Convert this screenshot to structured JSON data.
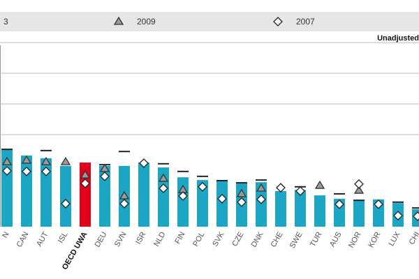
{
  "chart_data": {
    "type": "bar",
    "subtitle": "Unadjusted",
    "categories": [
      "N",
      "CAN",
      "AUT",
      "ISL",
      "OECD UWA",
      "DEU",
      "SVN",
      "ISR",
      "NLD",
      "FIN",
      "POL",
      "SVK",
      "CZE",
      "DNK",
      "CHE",
      "SWE",
      "TUR",
      "AUS",
      "NOR",
      "KOR",
      "LUX",
      "CHI"
    ],
    "values": [
      25.0,
      23.2,
      22.3,
      19.8,
      20.9,
      19.8,
      19.8,
      20.9,
      19.3,
      16.1,
      15.2,
      14.8,
      14.1,
      14.5,
      11.6,
      12.0,
      10.2,
      9.1,
      8.6,
      8.9,
      7.7,
      5.7
    ],
    "colors": [
      "#1aa6c4",
      "#1aa6c4",
      "#1aa6c4",
      "#1aa6c4",
      "#e3001b",
      "#1aa6c4",
      "#1aa6c4",
      "#1aa6c4",
      "#1aa6c4",
      "#1aa6c4",
      "#1aa6c4",
      "#1aa6c4",
      "#1aa6c4",
      "#1aa6c4",
      "#1aa6c4",
      "#1aa6c4",
      "#1aa6c4",
      "#1aa6c4",
      "#1aa6c4",
      "#1aa6c4",
      "#1aa6c4",
      "#1aa6c4"
    ],
    "series": [
      {
        "name": "3",
        "marker": "dash",
        "color": "#222222",
        "values": [
          25.2,
          null,
          24.8,
          null,
          null,
          20.2,
          24.5,
          null,
          20.5,
          18.0,
          16.4,
          15.0,
          14.3,
          15.2,
          null,
          13.0,
          null,
          10.7,
          8.6,
          null,
          8.0,
          6.1
        ]
      },
      {
        "name": "2009",
        "marker": "triangle",
        "color": "#9a9a9a",
        "values": [
          21.1,
          21.6,
          21.1,
          21.1,
          16.8,
          18.9,
          10.0,
          null,
          15.7,
          12.0,
          null,
          null,
          10.7,
          12.5,
          null,
          null,
          13.4,
          null,
          11.8,
          null,
          null,
          null
        ]
      },
      {
        "name": "2007",
        "marker": "diamond",
        "color": "#ffffff",
        "values": [
          18.2,
          18.0,
          18.0,
          7.5,
          14.1,
          16.4,
          7.5,
          20.7,
          12.5,
          10.0,
          13.0,
          9.1,
          8.0,
          8.9,
          12.7,
          11.6,
          null,
          7.3,
          13.9,
          7.3,
          3.6,
          3.4
        ]
      }
    ],
    "ylim": [
      0,
      60
    ],
    "yticks": [
      30,
      40,
      50,
      60
    ],
    "grid": true
  }
}
